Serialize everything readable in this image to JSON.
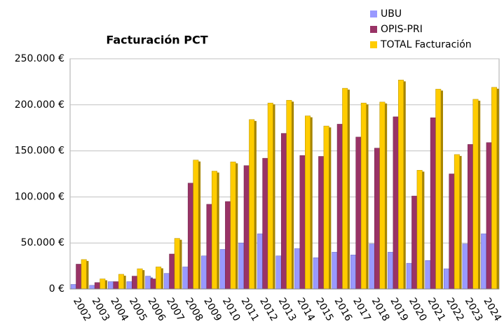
{
  "chart_data": {
    "type": "bar",
    "title": "Facturación PCT",
    "categories": [
      "2002",
      "2003",
      "2004",
      "2005",
      "2006",
      "2007",
      "2008",
      "2009",
      "2010",
      "2011",
      "2012",
      "2013",
      "2014",
      "2015",
      "2016",
      "2017",
      "2018",
      "2019",
      "2020",
      "2021",
      "2022",
      "2023",
      "2024"
    ],
    "series": [
      {
        "name": "UBU",
        "color": "#9999ff",
        "values": [
          5000,
          4000,
          8000,
          8000,
          14000,
          17000,
          24000,
          36000,
          43000,
          50000,
          60000,
          36000,
          44000,
          34000,
          40000,
          37000,
          49000,
          40000,
          28000,
          31000,
          22000,
          49000,
          60000
        ]
      },
      {
        "name": "OPIS-PRI",
        "color": "#993366",
        "values": [
          27000,
          7000,
          8000,
          14000,
          11000,
          38000,
          115000,
          92000,
          95000,
          134000,
          142000,
          169000,
          145000,
          144000,
          179000,
          165000,
          153000,
          187000,
          101000,
          186000,
          125000,
          157000,
          159000
        ]
      },
      {
        "name": "TOTAL Facturación",
        "color": "#ffcc00",
        "values": [
          32000,
          11000,
          16000,
          22000,
          24000,
          55000,
          140000,
          128000,
          138000,
          184000,
          202000,
          205000,
          188000,
          177000,
          218000,
          202000,
          203000,
          227000,
          129000,
          217000,
          146000,
          206000,
          219000
        ]
      }
    ],
    "ylim": [
      0,
      250000
    ],
    "yticks": [
      {
        "value": 0,
        "label": "0 €"
      },
      {
        "value": 50000,
        "label": "50.000 €"
      },
      {
        "value": 100000,
        "label": "100.000 €"
      },
      {
        "value": 150000,
        "label": "150.000 €"
      },
      {
        "value": 200000,
        "label": "200.000 €"
      },
      {
        "value": 250000,
        "label": "250.000 €"
      }
    ],
    "grid": true,
    "legend": "top-right"
  }
}
